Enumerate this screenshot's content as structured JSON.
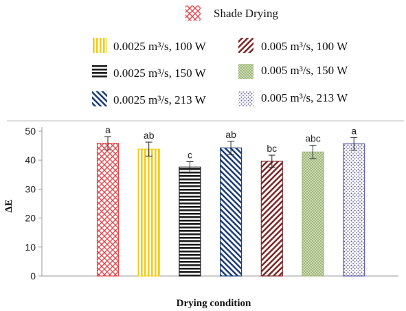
{
  "chart_data": {
    "type": "bar",
    "categories": [
      "Shade Drying",
      "0.0025 m³/s, 100 W",
      "0.0025 m³/s, 150 W",
      "0.0025 m³/s, 213 W",
      "0.005 m³/s, 100 W",
      "0.005 m³/s, 150 W",
      "0.005 m³/s, 213 W"
    ],
    "values": [
      45.8,
      43.8,
      37.6,
      44.2,
      39.6,
      42.8,
      45.6
    ],
    "errors": [
      2.3,
      2.4,
      1.9,
      2.3,
      2.1,
      2.3,
      2.2
    ],
    "significance_labels": [
      "a",
      "ab",
      "c",
      "ab",
      "bc",
      "abc",
      "a"
    ],
    "colors": [
      "#e8474c",
      "#f2cc1c",
      "#1a1a1a",
      "#1f3f78",
      "#7d2a2a",
      "#9eb67a",
      "#5a5aa0"
    ],
    "patterns": [
      "crosshatch",
      "vertical",
      "horizontal",
      "diagonal-down",
      "diagonal-up",
      "checker",
      "dots"
    ],
    "legend": [
      "Shade Drying",
      "0.0025 m³/s, 100 W",
      "0.005 m³/s, 100 W",
      "0.0025 m³/s, 150 W",
      "0.005 m³/s, 150 W",
      "0.0025 m³/s, 213 W",
      "0.005 m³/s, 213 W"
    ],
    "legend_placement": "top",
    "title": "",
    "xlabel": "Drying condition",
    "ylabel": "ΔE",
    "ylim": [
      0,
      50
    ],
    "yticks": [
      "0",
      "10",
      "20",
      "30",
      "40",
      "50"
    ],
    "grid": false
  }
}
